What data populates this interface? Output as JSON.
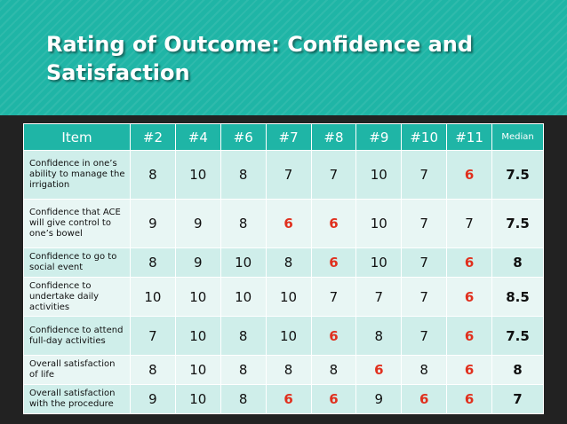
{
  "title": "Rating of Outcome: Confidence and Satisfaction",
  "accent_color": "#1fb5a6",
  "highlight_color": "#e0301e",
  "columns": [
    "Item",
    "#2",
    "#4",
    "#6",
    "#7",
    "#8",
    "#9",
    "#10",
    "#11",
    "Median"
  ],
  "rows": [
    {
      "item": "Confidence in one’s ability to manage the irrigation",
      "values": [
        "8",
        "10",
        "8",
        "7",
        "7",
        "10",
        "7",
        "6"
      ],
      "median": "7.5"
    },
    {
      "item": "Confidence that ACE will give control to one’s bowel",
      "values": [
        "9",
        "9",
        "8",
        "6",
        "6",
        "10",
        "7",
        "7"
      ],
      "median": "7.5"
    },
    {
      "item": "Confidence to go to social event",
      "values": [
        "8",
        "9",
        "10",
        "8",
        "6",
        "10",
        "7",
        "6"
      ],
      "median": "8"
    },
    {
      "item": "Confidence to undertake daily activities",
      "values": [
        "10",
        "10",
        "10",
        "10",
        "7",
        "7",
        "7",
        "6"
      ],
      "median": "8.5"
    },
    {
      "item": "Confidence to attend full-day activities",
      "values": [
        "7",
        "10",
        "8",
        "10",
        "6",
        "8",
        "7",
        "6"
      ],
      "median": "7.5"
    },
    {
      "item": "Overall satisfaction of life",
      "values": [
        "8",
        "10",
        "8",
        "8",
        "8",
        "6",
        "8",
        "6"
      ],
      "median": "8"
    },
    {
      "item": "Overall satisfaction with the procedure",
      "values": [
        "9",
        "10",
        "8",
        "6",
        "6",
        "9",
        "6",
        "6"
      ],
      "median": "7"
    }
  ]
}
